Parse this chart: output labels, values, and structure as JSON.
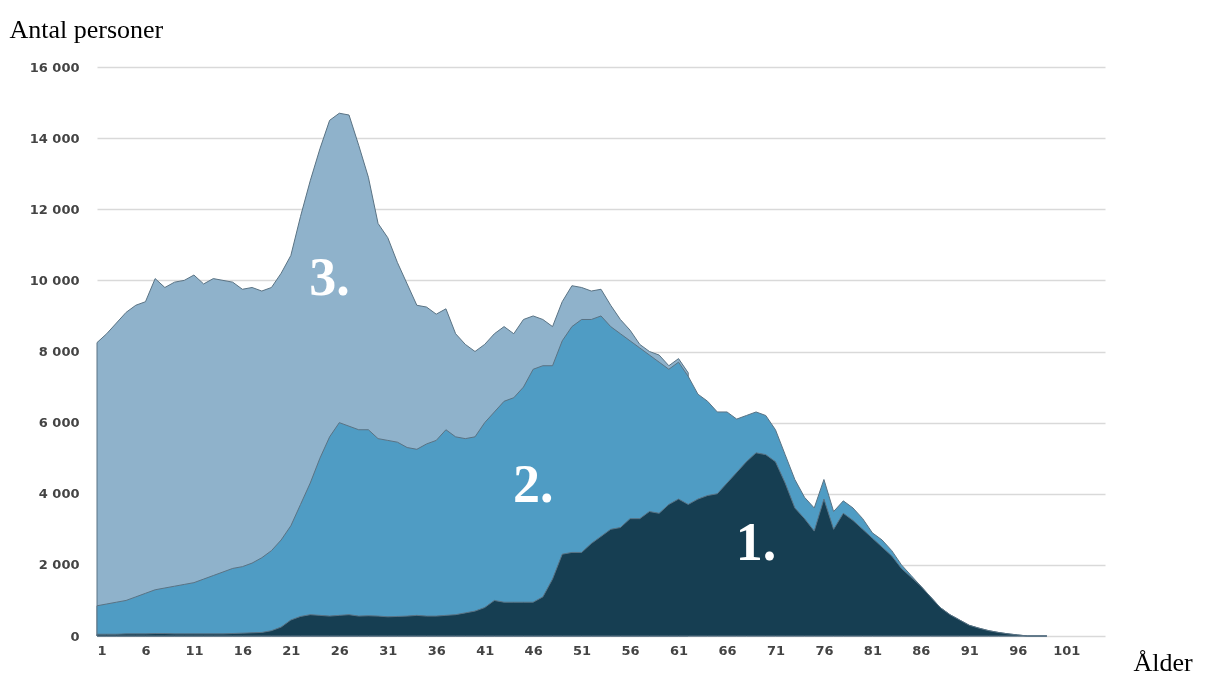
{
  "chart_data": {
    "type": "area",
    "ylabel": "Antal personer",
    "xlabel": "Ålder",
    "x": [
      1,
      2,
      3,
      4,
      5,
      6,
      7,
      8,
      9,
      10,
      11,
      12,
      13,
      14,
      15,
      16,
      17,
      18,
      19,
      20,
      21,
      22,
      23,
      24,
      25,
      26,
      27,
      28,
      29,
      30,
      31,
      32,
      33,
      34,
      35,
      36,
      37,
      38,
      39,
      40,
      41,
      42,
      43,
      44,
      45,
      46,
      47,
      48,
      49,
      50,
      51,
      52,
      53,
      54,
      55,
      56,
      57,
      58,
      59,
      60,
      61,
      62,
      63,
      64,
      65,
      66,
      67,
      68,
      69,
      70,
      71,
      72,
      73,
      74,
      75,
      76,
      77,
      78,
      79,
      80,
      81,
      82,
      83,
      84,
      85,
      86,
      87,
      88,
      89,
      90,
      91,
      92,
      93,
      94,
      95,
      96,
      97,
      98,
      99
    ],
    "series": [
      {
        "name": "3.",
        "color": "#8fb2cb",
        "values": [
          8250,
          8500,
          8800,
          9100,
          9300,
          9400,
          10050,
          9800,
          9950,
          10000,
          10150,
          9900,
          10050,
          10000,
          9950,
          9750,
          9800,
          9700,
          9800,
          10200,
          10700,
          11800,
          12800,
          13700,
          14500,
          14700,
          14650,
          13800,
          12900,
          11600,
          11200,
          10500,
          9900,
          9300,
          9250,
          9050,
          9200,
          8500,
          8200,
          8000,
          8200,
          8500,
          8700,
          8500,
          8900,
          9000,
          8900,
          8700,
          9400,
          9850,
          9800,
          9700,
          9750,
          9300,
          8900,
          8600,
          8200,
          8000,
          7900,
          7600,
          7800,
          7400,
          null,
          null,
          null,
          null,
          null,
          null,
          null,
          null,
          null,
          null,
          null,
          null,
          null,
          null,
          null,
          null,
          null,
          null,
          null,
          null,
          null,
          null,
          null,
          null,
          null,
          null,
          null,
          null,
          null,
          null,
          null,
          null,
          null,
          null,
          null,
          null,
          null
        ]
      },
      {
        "name": "2.",
        "color": "#4f9cc4",
        "values": [
          850,
          900,
          950,
          1000,
          1100,
          1200,
          1300,
          1350,
          1400,
          1450,
          1500,
          1600,
          1700,
          1800,
          1900,
          1950,
          2050,
          2200,
          2400,
          2700,
          3100,
          3700,
          4300,
          5000,
          5600,
          6000,
          5900,
          5800,
          5800,
          5550,
          5500,
          5450,
          5300,
          5250,
          5400,
          5500,
          5800,
          5600,
          5550,
          5600,
          6000,
          6300,
          6600,
          6700,
          7000,
          7500,
          7600,
          7600,
          8300,
          8700,
          8900,
          8900,
          9000,
          8700,
          8500,
          8300,
          8100,
          7900,
          7700,
          7500,
          7700,
          7300,
          6800,
          6600,
          6300,
          6300,
          6100,
          6200,
          6300,
          6200,
          5800,
          5100,
          4400,
          3900,
          3600,
          4400,
          3500,
          3800,
          3600,
          3300,
          2900,
          2700,
          2400,
          2000,
          1700,
          1400,
          1100,
          800,
          600,
          450,
          300,
          220,
          150,
          100,
          60,
          30,
          0,
          0,
          0
        ]
      },
      {
        "name": "1.",
        "color": "#163e52",
        "values": [
          50,
          50,
          50,
          60,
          60,
          60,
          70,
          70,
          60,
          60,
          60,
          60,
          60,
          60,
          70,
          80,
          90,
          100,
          150,
          250,
          450,
          550,
          600,
          580,
          560,
          580,
          600,
          560,
          570,
          560,
          540,
          550,
          560,
          580,
          560,
          560,
          580,
          600,
          650,
          700,
          800,
          1000,
          950,
          950,
          950,
          950,
          1100,
          1600,
          2300,
          2350,
          2350,
          2600,
          2800,
          3000,
          3050,
          3300,
          3300,
          3500,
          3450,
          3700,
          3850,
          3700,
          3850,
          3950,
          4000,
          4300,
          4600,
          4900,
          5150,
          5100,
          4900,
          4300,
          3600,
          3300,
          2950,
          3850,
          3000,
          3450,
          3250,
          3000,
          2750,
          2500,
          2250,
          1900,
          1650,
          1400,
          1100,
          800,
          600,
          450,
          300,
          220,
          150,
          100,
          60,
          30,
          0,
          0,
          0
        ]
      }
    ],
    "xlim": [
      1,
      105
    ],
    "xticks": [
      1,
      6,
      11,
      16,
      21,
      26,
      31,
      36,
      41,
      46,
      51,
      56,
      61,
      66,
      71,
      76,
      81,
      86,
      91,
      96,
      101
    ],
    "ylim": [
      0,
      16000
    ],
    "yticks": [
      0,
      {
        "value": 2000,
        "label": "2 000"
      },
      {
        "value": 4000,
        "label": "4 000"
      },
      {
        "value": 6000,
        "label": "6 000"
      },
      {
        "value": 8000,
        "label": "8 000"
      },
      {
        "value": 10000,
        "label": "10 000"
      },
      {
        "value": 12000,
        "label": "12 000"
      },
      {
        "value": 14000,
        "label": "14 000"
      },
      {
        "value": 16000,
        "label": "16 000"
      }
    ],
    "grid": "y"
  }
}
